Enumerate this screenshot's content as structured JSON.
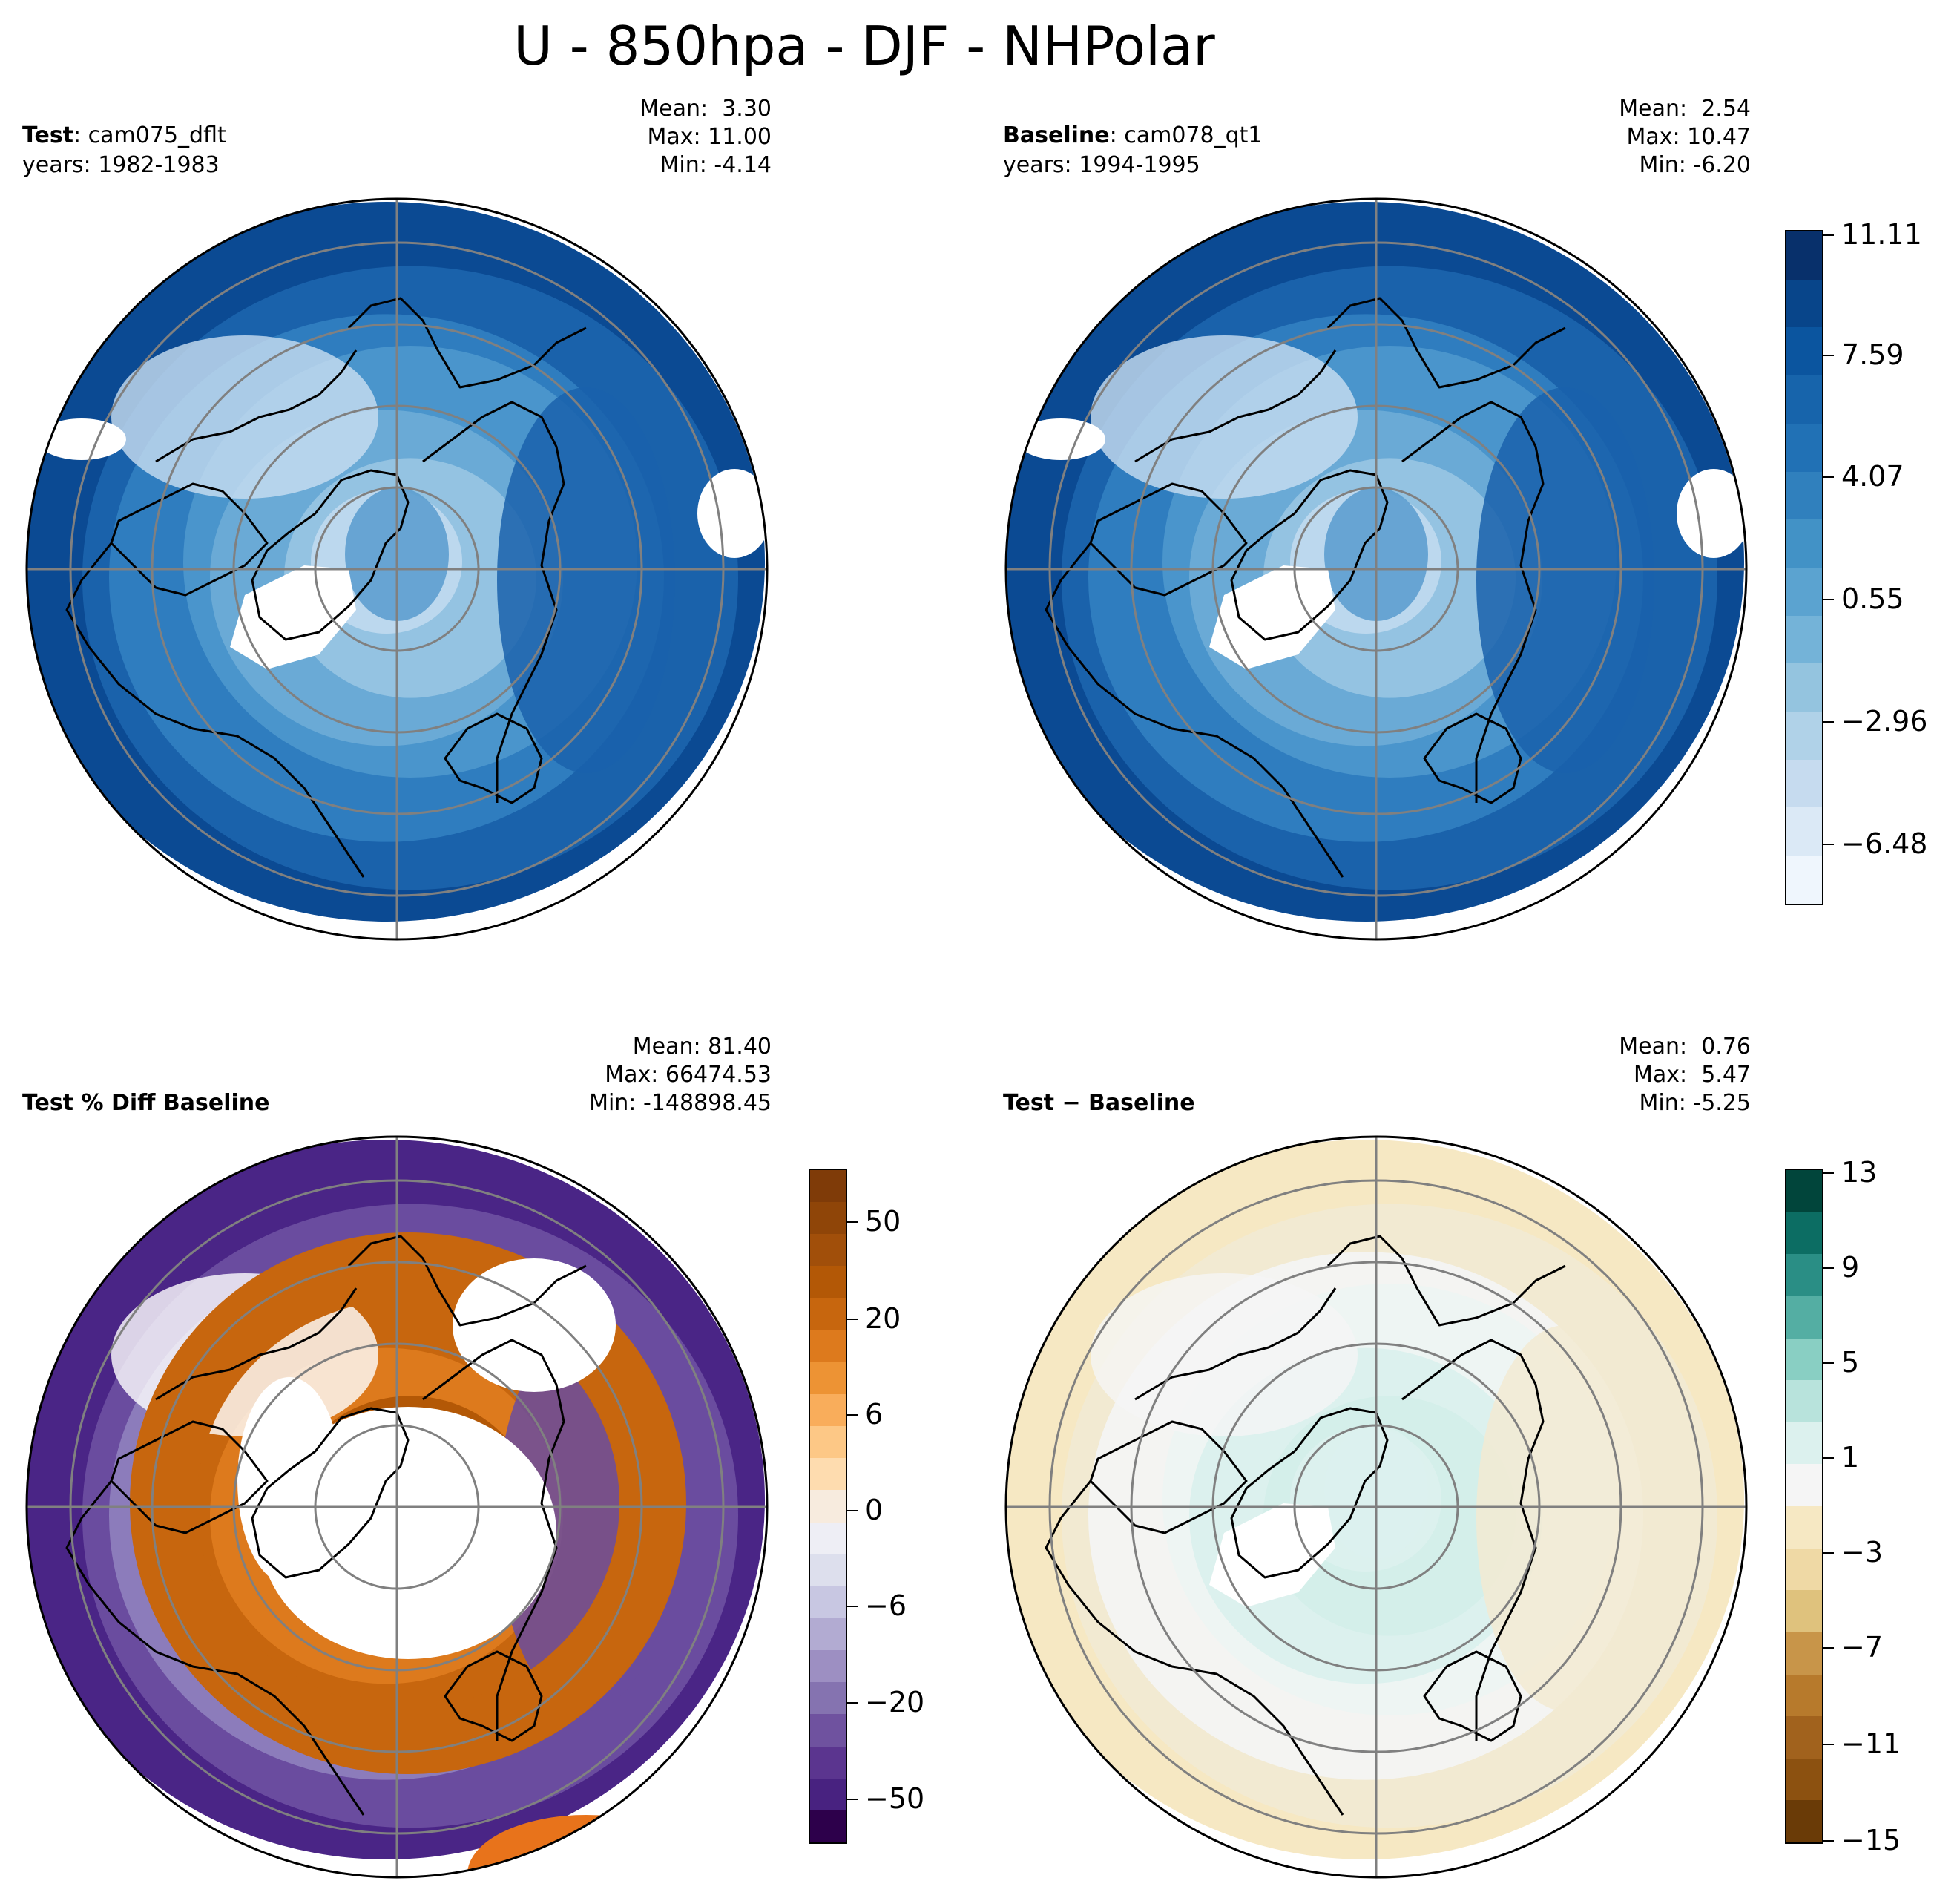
{
  "title": "U - 850hpa - DJF - NHPolar",
  "panels": [
    {
      "id": "test",
      "label_bold": "Test",
      "label_rest": ": cam075_dflt",
      "years": "years: 1982-1983",
      "stats": {
        "mean": "Mean:  3.30",
        "max": "Max: 11.00",
        "min": "Min: -4.14"
      },
      "palette": "blues"
    },
    {
      "id": "baseline",
      "label_bold": "Baseline",
      "label_rest": ": cam078_qt1",
      "years": "years: 1994-1995",
      "stats": {
        "mean": "Mean:  2.54",
        "max": "Max: 10.47",
        "min": "Min: -6.20"
      },
      "palette": "blues"
    },
    {
      "id": "pctdiff",
      "label_bold": "Test % Diff Baseline",
      "label_rest": "",
      "years": "",
      "stats": {
        "mean": "Mean: 81.40",
        "max": "Max: 66474.53",
        "min": "Min: -148898.45"
      },
      "palette": "puor"
    },
    {
      "id": "diff",
      "label_bold": "Test",
      "label_rest": " − Baseline",
      "years": "",
      "stats": {
        "mean": "Mean:  0.76",
        "max": "Max:  5.47",
        "min": "Min: -5.25"
      },
      "palette": "brbg"
    }
  ],
  "colorbars": {
    "main": {
      "ticks": [
        "11.11",
        "7.59",
        "4.07",
        "0.55",
        "−2.96",
        "−6.48"
      ],
      "colors": [
        "#08306b",
        "#08458a",
        "#0b559f",
        "#1764ab",
        "#2171b5",
        "#3080bd",
        "#4292c6",
        "#5ba3d0",
        "#74b3d8",
        "#94c4df",
        "#b0d2e8",
        "#c6dbef",
        "#dbe9f6",
        "#eff6fd"
      ]
    },
    "pctdiff": {
      "ticks": [
        "50",
        "20",
        "6",
        "0",
        "−6",
        "−20",
        "−50"
      ],
      "colors": [
        "#7f3b08",
        "#8f4508",
        "#a14f0a",
        "#b35806",
        "#c7660e",
        "#dd7a1d",
        "#ed9334",
        "#f9ad5b",
        "#fdc886",
        "#fedcaf",
        "#f7ebde",
        "#eeeef5",
        "#dddfed",
        "#c8c7e2",
        "#b2abd2",
        "#9d8fc2",
        "#8573b0",
        "#6f529f",
        "#5b358f",
        "#482280",
        "#2d004b"
      ]
    },
    "diff": {
      "ticks": [
        "13",
        "9",
        "5",
        "1",
        "−3",
        "−7",
        "−11",
        "−15"
      ],
      "colors": [
        "#01453b",
        "#0c6d63",
        "#2a8e85",
        "#54aea3",
        "#89cfc3",
        "#b8e3dc",
        "#dcf1ee",
        "#f5f5f5",
        "#f6e8c3",
        "#efd9a5",
        "#dfc27d",
        "#c89549",
        "#b77a2c",
        "#a1621d",
        "#8c5110",
        "#6a3b07"
      ]
    }
  }
}
